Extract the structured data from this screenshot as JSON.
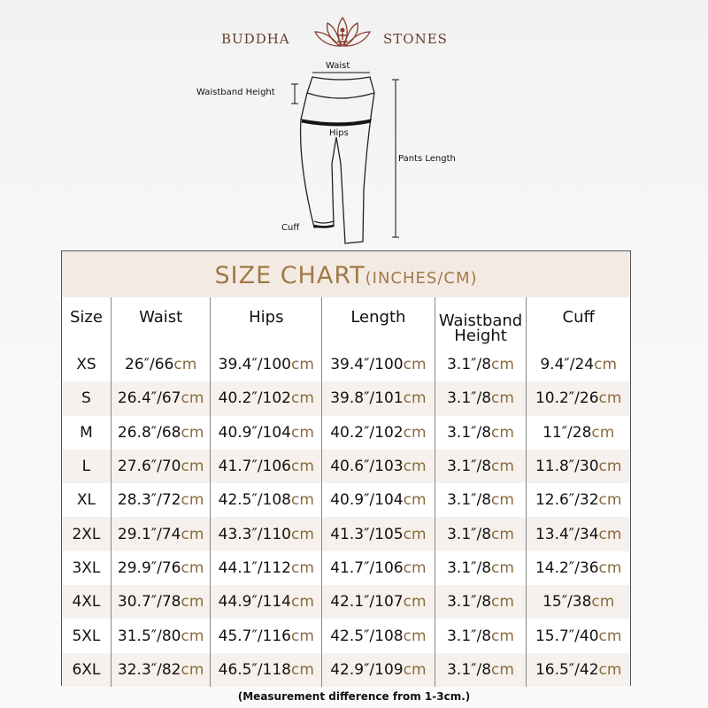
{
  "brand": {
    "left": "BUDDHA",
    "right": "STONES"
  },
  "illustration": {
    "labels": {
      "waist": "Waist",
      "waistband_height": "Waistband Height",
      "hips": "Hips",
      "pants_length": "Pants Length",
      "cuff": "Cuff"
    }
  },
  "table": {
    "title": "SIZE CHART",
    "title_units": "(INCHES/CM)",
    "unit": "cm",
    "headers": [
      "Size",
      "Waist",
      "Hips",
      "Length",
      "Waistband Height",
      "Cuff"
    ],
    "rows": [
      [
        "XS",
        "26″/66",
        "39.4″/100",
        "39.4″/100",
        "3.1″/8",
        "9.4″/24"
      ],
      [
        "S",
        "26.4″/67",
        "40.2″/102",
        "39.8″/101",
        "3.1″/8",
        "10.2″/26"
      ],
      [
        "M",
        "26.8″/68",
        "40.9″/104",
        "40.2″/102",
        "3.1″/8",
        "11″/28"
      ],
      [
        "L",
        "27.6″/70",
        "41.7″/106",
        "40.6″/103",
        "3.1″/8",
        "11.8″/30"
      ],
      [
        "XL",
        "28.3″/72",
        "42.5″/108",
        "40.9″/104",
        "3.1″/8",
        "12.6″/32"
      ],
      [
        "2XL",
        "29.1″/74",
        "43.3″/110",
        "41.3″/105",
        "3.1″/8",
        "13.4″/34"
      ],
      [
        "3XL",
        "29.9″/76",
        "44.1″/112",
        "41.7″/106",
        "3.1″/8",
        "14.2″/36"
      ],
      [
        "4XL",
        "30.7″/78",
        "44.9″/114",
        "42.1″/107",
        "3.1″/8",
        "15″/38"
      ],
      [
        "5XL",
        "31.5″/80",
        "45.7″/116",
        "42.5″/108",
        "3.1″/8",
        "15.7″/40"
      ],
      [
        "6XL",
        "32.3″/82",
        "46.5″/118",
        "42.9″/109",
        "3.1″/8",
        "16.5″/42"
      ]
    ]
  },
  "note": "(Measurement difference from 1-3cm.)",
  "colors": {
    "accent": "#a07a48",
    "band": "#f6f1ec",
    "logo": "#6a3a2a"
  }
}
